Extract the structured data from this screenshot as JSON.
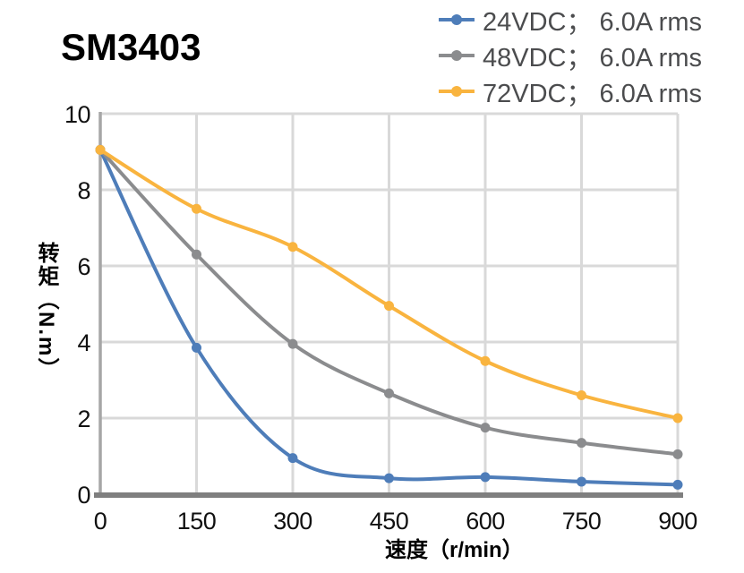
{
  "title": "SM3403",
  "chart_data": {
    "type": "line",
    "title": "SM3403",
    "xlabel": "速度（r/min）",
    "ylabel": "转矩（N.m）",
    "x": [
      0,
      150,
      300,
      450,
      600,
      750,
      900
    ],
    "x_ticks": [
      "0",
      "150",
      "300",
      "450",
      "600",
      "750",
      "900"
    ],
    "y_ticks": [
      "0",
      "2",
      "4",
      "6",
      "8",
      "10"
    ],
    "xlim": [
      0,
      900
    ],
    "ylim": [
      0,
      10
    ],
    "grid": true,
    "legend_position": "top-right",
    "marker": "circle",
    "series": [
      {
        "name": "24VDC； 6.0A rms",
        "color": "#4E7DB9",
        "values": [
          9.05,
          3.85,
          0.95,
          0.42,
          0.45,
          0.33,
          0.25
        ]
      },
      {
        "name": "48VDC； 6.0A rms",
        "color": "#8B8C8E",
        "values": [
          9.05,
          6.3,
          3.95,
          2.65,
          1.75,
          1.35,
          1.05
        ]
      },
      {
        "name": "72VDC； 6.0A rms",
        "color": "#F9B43F",
        "values": [
          9.05,
          7.5,
          6.5,
          4.95,
          3.5,
          2.6,
          2.0
        ]
      }
    ]
  },
  "colors": {
    "background": "#ffffff",
    "grid": "#d9d9d9",
    "x_axis": "#7f7f7f",
    "y_axis": "#a6a6a6",
    "tick_text": "#111111",
    "legend_text": "#4b4c4e",
    "title_text": "#000000"
  }
}
